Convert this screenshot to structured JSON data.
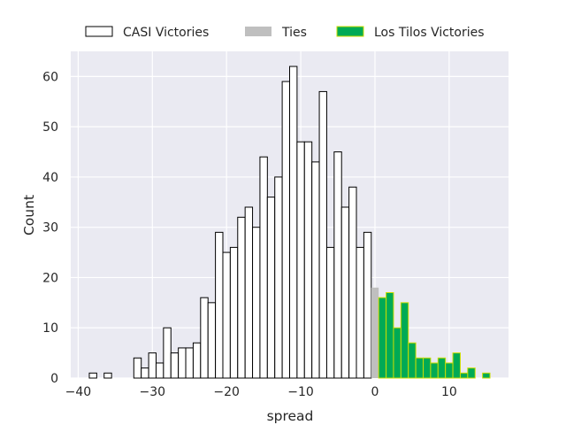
{
  "chart_data": {
    "type": "bar",
    "xlabel": "spread",
    "ylabel": "Count",
    "xlim": [
      -41,
      18
    ],
    "ylim": [
      0,
      65
    ],
    "x_ticks": [
      -40,
      -30,
      -20,
      -10,
      0,
      10
    ],
    "y_ticks": [
      0,
      10,
      20,
      30,
      40,
      50,
      60
    ],
    "x_tick_labels": [
      "−40",
      "−30",
      "−20",
      "−10",
      "0",
      "10"
    ],
    "y_tick_labels": [
      "0",
      "10",
      "20",
      "30",
      "40",
      "50",
      "60"
    ],
    "grid": true,
    "legend_placement": "top-center, outside plot",
    "bin_width": 1,
    "colors": {
      "background": "#eaeaf2",
      "grid": "#ffffff",
      "casi_fill": "#ffffff",
      "casi_edge": "#000000",
      "ties_fill": "#bfbfbf",
      "tilos_fill": "#00aa55",
      "tilos_edge": "#ccdd00"
    },
    "series": [
      {
        "name": "CASI Victories",
        "key": "casi",
        "x": [
          -38,
          -36,
          -32,
          -31,
          -30,
          -29,
          -28,
          -27,
          -26,
          -25,
          -24,
          -23,
          -22,
          -21,
          -20,
          -19,
          -18,
          -17,
          -16,
          -15,
          -14,
          -13,
          -12,
          -11,
          -10,
          -9,
          -8,
          -7,
          -6,
          -5,
          -4,
          -3,
          -2,
          -1
        ],
        "values": [
          1,
          1,
          4,
          2,
          5,
          3,
          10,
          5,
          6,
          6,
          7,
          16,
          15,
          29,
          25,
          26,
          32,
          34,
          30,
          44,
          36,
          40,
          59,
          62,
          47,
          47,
          43,
          57,
          26,
          45,
          34,
          38,
          26,
          29
        ]
      },
      {
        "name": "Ties",
        "key": "ties",
        "x": [
          0
        ],
        "values": [
          18
        ]
      },
      {
        "name": "Los Tilos Victories",
        "key": "tilos",
        "x": [
          1,
          2,
          3,
          4,
          5,
          6,
          7,
          8,
          9,
          10,
          11,
          12,
          13,
          15
        ],
        "values": [
          16,
          17,
          10,
          15,
          7,
          4,
          4,
          3,
          4,
          3,
          5,
          1,
          2,
          1
        ]
      }
    ]
  }
}
